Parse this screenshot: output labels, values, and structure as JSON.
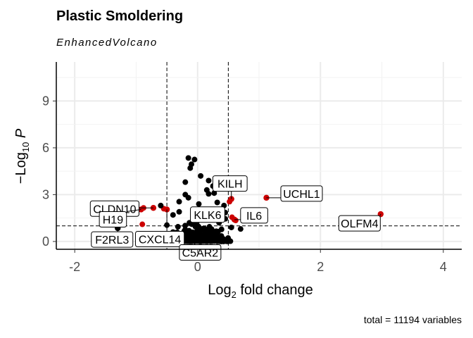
{
  "chart_data": {
    "type": "scatter",
    "title": "Plastic Smoldering",
    "subtitle": "EnhancedVolcano",
    "caption": "total = 11194 variables",
    "xlabel": "Log2 fold change",
    "ylabel": "-Log10 P",
    "xlim": [
      -2.3,
      4.3
    ],
    "ylim": [
      -0.5,
      11.5
    ],
    "x_ticks": [
      -2,
      0,
      2,
      4
    ],
    "y_ticks": [
      0,
      3,
      6,
      9
    ],
    "fc_cutoff": 0.5,
    "p_cutoff_log10": 1.0,
    "grid": true,
    "colors": {
      "significant": "#cc0000",
      "not_significant": "#000000",
      "cutoff_line": "#000000"
    },
    "labeled_points": [
      {
        "gene": "OLFM4",
        "x": 2.98,
        "y": 1.75,
        "sig": true
      },
      {
        "gene": "UCHL1",
        "x": 1.12,
        "y": 2.8,
        "sig": true
      },
      {
        "gene": "KILH",
        "x": 0.55,
        "y": 2.72,
        "sig": true
      },
      {
        "gene": "IL6",
        "x": 0.6,
        "y": 1.4,
        "sig": true
      },
      {
        "gene": "KLK6",
        "x": 0.3,
        "y": 1.9,
        "sig": false
      },
      {
        "gene": "CLDN10",
        "x": -0.72,
        "y": 2.15,
        "sig": true
      },
      {
        "gene": "H19",
        "x": -0.92,
        "y": 2.05,
        "sig": true
      },
      {
        "gene": "CXCL14",
        "x": -0.5,
        "y": 2.05,
        "sig": true
      },
      {
        "gene": "F2RL3",
        "x": -1.3,
        "y": 0.85,
        "sig": false
      },
      {
        "gene": "C5AR2",
        "x": -0.05,
        "y": 0.2,
        "sig": false
      }
    ],
    "points": [
      {
        "x": -0.15,
        "y": 5.35,
        "sig": false
      },
      {
        "x": -0.05,
        "y": 5.25,
        "sig": false
      },
      {
        "x": -0.1,
        "y": 4.95,
        "sig": false
      },
      {
        "x": -0.12,
        "y": 4.7,
        "sig": false
      },
      {
        "x": 0.05,
        "y": 4.2,
        "sig": false
      },
      {
        "x": 0.18,
        "y": 3.9,
        "sig": false
      },
      {
        "x": -0.2,
        "y": 3.8,
        "sig": false
      },
      {
        "x": 0.25,
        "y": 3.55,
        "sig": false
      },
      {
        "x": 0.15,
        "y": 3.3,
        "sig": false
      },
      {
        "x": 0.18,
        "y": 3.05,
        "sig": false
      },
      {
        "x": 0.27,
        "y": 3.1,
        "sig": false
      },
      {
        "x": -0.2,
        "y": 3.0,
        "sig": false
      },
      {
        "x": -0.15,
        "y": 2.8,
        "sig": false
      },
      {
        "x": 0.32,
        "y": 2.5,
        "sig": false
      },
      {
        "x": -0.3,
        "y": 2.55,
        "sig": false
      },
      {
        "x": 0.02,
        "y": 2.4,
        "sig": false
      },
      {
        "x": 0.43,
        "y": 2.3,
        "sig": false
      },
      {
        "x": 0.3,
        "y": 2.05,
        "sig": false
      },
      {
        "x": 0.45,
        "y": 1.85,
        "sig": false
      },
      {
        "x": -0.3,
        "y": 1.9,
        "sig": false
      },
      {
        "x": -0.4,
        "y": 1.7,
        "sig": false
      },
      {
        "x": 0.35,
        "y": 1.6,
        "sig": false
      },
      {
        "x": 0.45,
        "y": 1.45,
        "sig": false
      },
      {
        "x": -0.5,
        "y": 1.05,
        "sig": false
      },
      {
        "x": 0.7,
        "y": 0.8,
        "sig": false
      },
      {
        "x": -0.4,
        "y": 0.6,
        "sig": false
      },
      {
        "x": -0.68,
        "y": 0.2,
        "sig": false
      },
      {
        "x": -0.55,
        "y": 0.3,
        "sig": false
      },
      {
        "x": 0.55,
        "y": 0.9,
        "sig": false
      },
      {
        "x": 0.52,
        "y": 2.55,
        "sig": true
      },
      {
        "x": 0.56,
        "y": 1.55,
        "sig": true
      },
      {
        "x": 0.62,
        "y": 1.35,
        "sig": true
      },
      {
        "x": -0.55,
        "y": 2.1,
        "sig": true
      },
      {
        "x": -0.88,
        "y": 2.15,
        "sig": true
      },
      {
        "x": -0.9,
        "y": 1.1,
        "sig": true
      },
      {
        "x": -0.6,
        "y": 2.3,
        "sig": false
      }
    ]
  }
}
